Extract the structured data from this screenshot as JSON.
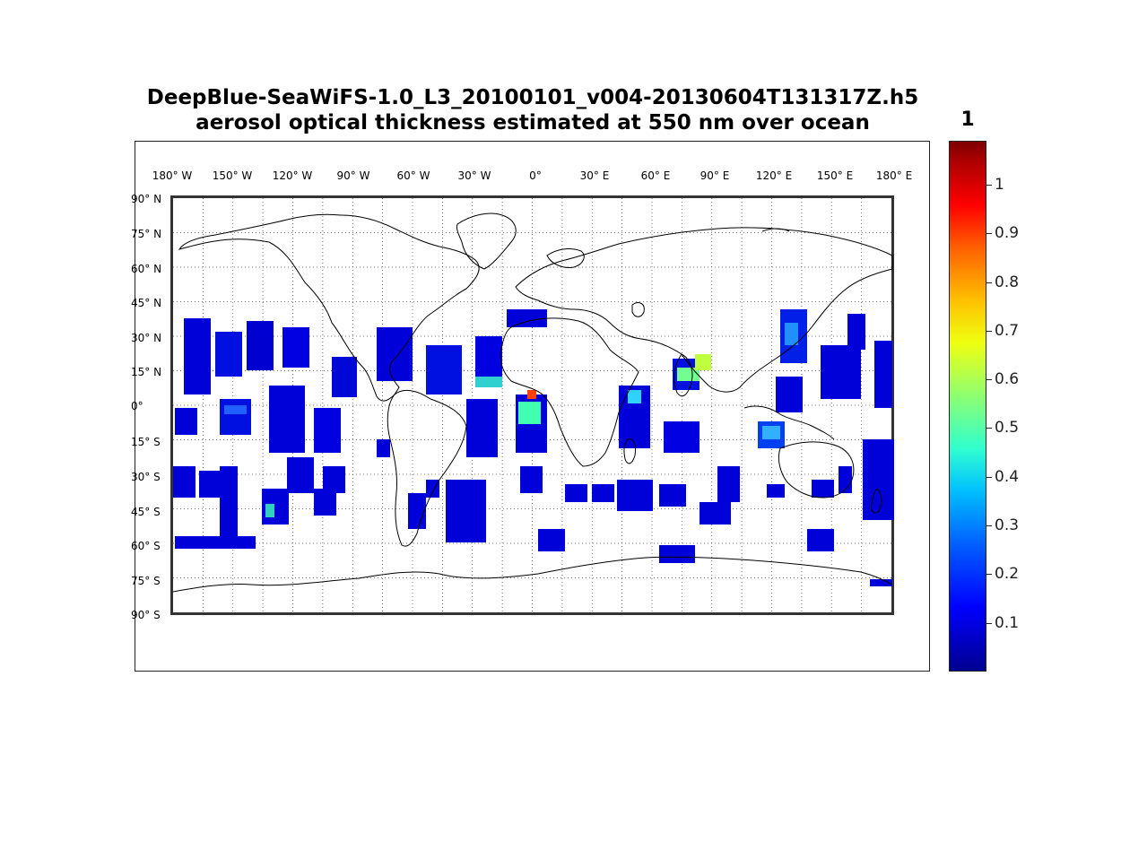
{
  "title_line1": "DeepBlue-SeaWiFS-1.0_L3_20100101_v004-20130604T131317Z.h5",
  "title_line2": "aerosol optical thickness estimated at 550 nm over ocean",
  "lon_labels": [
    "180° W",
    "150° W",
    "120° W",
    "90° W",
    "60° W",
    "30° W",
    "0°",
    "30° E",
    "60° E",
    "90° E",
    "120° E",
    "150° E",
    "180° E"
  ],
  "lat_labels": [
    "90° N",
    "75° N",
    "60° N",
    "45° N",
    "30° N",
    "15° N",
    "0°",
    "15° S",
    "30° S",
    "45° S",
    "60° S",
    "75° S",
    "90° S"
  ],
  "colorbar": {
    "title": "1",
    "ticks": [
      "0.1",
      "0.2",
      "0.3",
      "0.4",
      "0.5",
      "0.6",
      "0.7",
      "0.8",
      "0.9",
      "1"
    ],
    "tick_values": [
      0.1,
      0.2,
      0.3,
      0.4,
      0.5,
      0.6,
      0.7,
      0.8,
      0.9,
      1.0
    ],
    "range": [
      0.0,
      1.09
    ],
    "colormap": "jet"
  },
  "colors": {
    "low": "#0000d8",
    "mid": "#30e0c0",
    "high": "#ff2000",
    "coastline": "#000000",
    "gridline": "#555555"
  },
  "map": {
    "projection": "equirectangular",
    "lon_range": [
      -180,
      180
    ],
    "lat_range": [
      -90,
      90
    ],
    "grid_spacing_deg": 15
  }
}
